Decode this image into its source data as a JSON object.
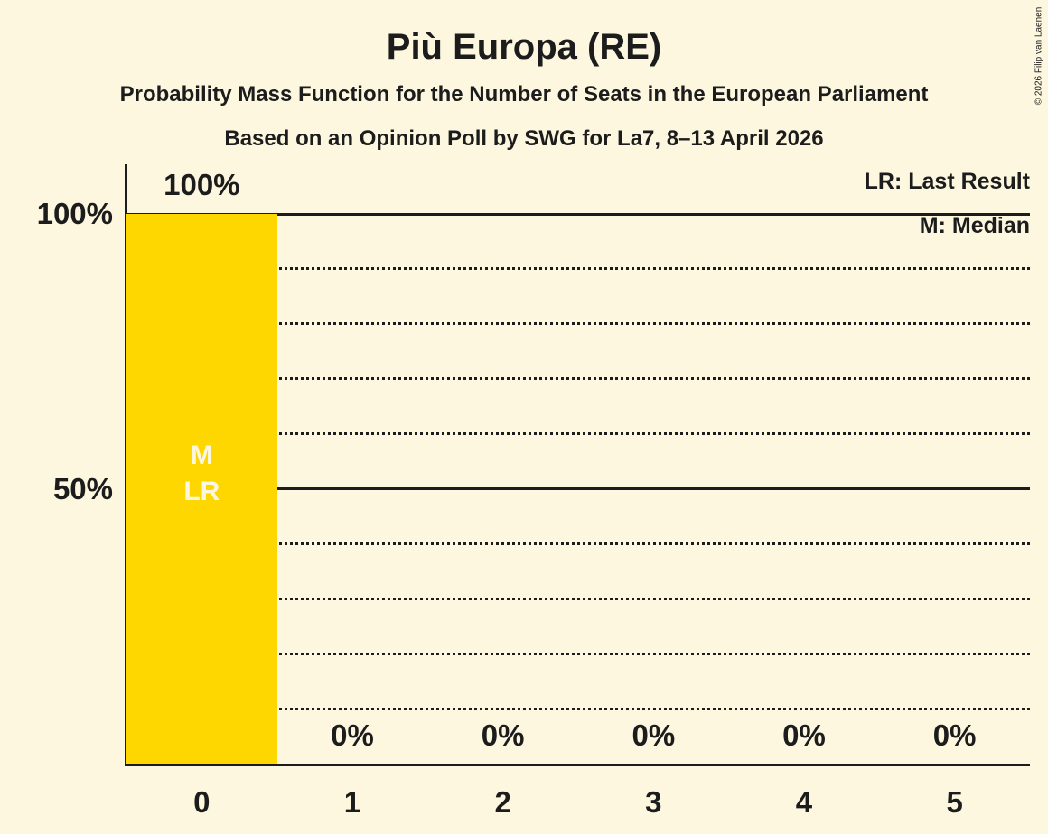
{
  "header": {
    "title": "Più Europa (RE)",
    "subtitle": "Probability Mass Function for the Number of Seats in the European Parliament",
    "poll_info": "Based on an Opinion Poll by SWG for La7, 8–13 April 2026"
  },
  "copyright": "© 2026 Filip van Laenen",
  "legend": {
    "lines": [
      "LR: Last Result",
      "M: Median"
    ]
  },
  "colors": {
    "background": "#FCF7DE",
    "ink": "#1C1C1C",
    "bar": "#FFD700",
    "bar_annotation_text": "#FCF7DE"
  },
  "chart_data": {
    "type": "bar",
    "title": "Più Europa (RE)",
    "categories": [
      "0",
      "1",
      "2",
      "3",
      "4",
      "5"
    ],
    "values": [
      100,
      0,
      0,
      0,
      0,
      0
    ],
    "value_labels": [
      "100%",
      "0%",
      "0%",
      "0%",
      "0%",
      "0%"
    ],
    "bar_annotations": [
      {
        "category": "0",
        "lines": [
          "M",
          "LR"
        ]
      }
    ],
    "y_ticks": [
      {
        "value": 100,
        "label": "100%"
      },
      {
        "value": 50,
        "label": "50%"
      }
    ],
    "ylim": [
      0,
      100
    ],
    "gridlines": {
      "solid": [
        100,
        50
      ],
      "dotted": [
        90,
        80,
        70,
        60,
        40,
        30,
        20,
        10
      ]
    },
    "legend_position": "top-right",
    "grid": true
  }
}
